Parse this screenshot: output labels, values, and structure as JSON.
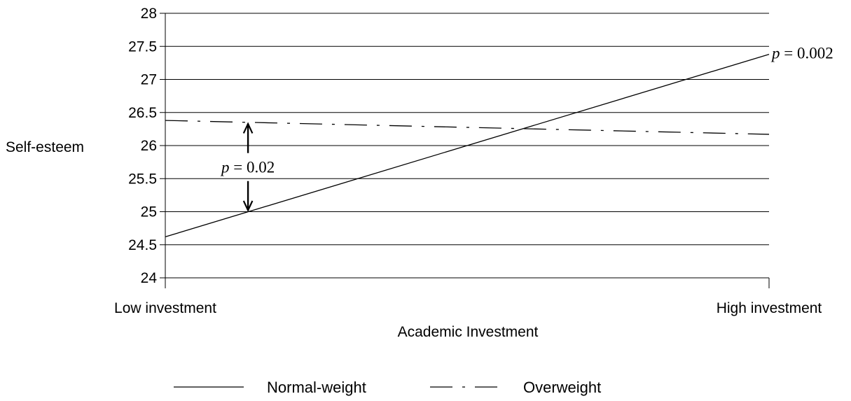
{
  "chart_data": {
    "type": "line",
    "xlabel": "Academic Investment",
    "ylabel": "Self-esteem",
    "categories": [
      "Low investment",
      "High investment"
    ],
    "ylim": [
      24,
      28
    ],
    "yticks": [
      "24",
      "24.5",
      "25",
      "25.5",
      "26",
      "26.5",
      "27",
      "27.5",
      "28"
    ],
    "grid": true,
    "legend_position": "bottom",
    "series": [
      {
        "name": "Normal-weight",
        "values": [
          24.62,
          27.38
        ],
        "line_style": "solid",
        "color": "#000000"
      },
      {
        "name": "Overweight",
        "values": [
          26.38,
          26.17
        ],
        "line_style": "dash-dot",
        "color": "#000000"
      }
    ],
    "annotations": [
      {
        "p_symbol": "p",
        "text": " = 0.002",
        "x_category": "High investment",
        "y": 27.38
      },
      {
        "p_symbol": "p",
        "text": " = 0.02",
        "x_fraction": 0.137,
        "y_low": 25.0,
        "y_high": 26.35
      }
    ]
  }
}
